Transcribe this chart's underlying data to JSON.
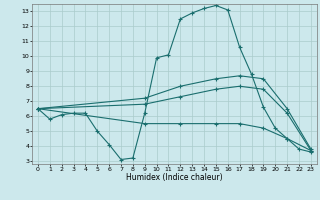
{
  "xlabel": "Humidex (Indice chaleur)",
  "bg_color": "#cce8ec",
  "grid_color": "#aacccc",
  "line_color": "#1a6e6e",
  "xlim": [
    -0.5,
    23.5
  ],
  "ylim": [
    2.8,
    13.5
  ],
  "xticks": [
    0,
    1,
    2,
    3,
    4,
    5,
    6,
    7,
    8,
    9,
    10,
    11,
    12,
    13,
    14,
    15,
    16,
    17,
    18,
    19,
    20,
    21,
    22,
    23
  ],
  "yticks": [
    3,
    4,
    5,
    6,
    7,
    8,
    9,
    10,
    11,
    12,
    13
  ],
  "lines": [
    {
      "x": [
        0,
        1,
        2,
        3,
        4,
        5,
        6,
        7,
        8,
        9,
        10,
        11,
        12,
        13,
        14,
        15,
        16,
        17,
        18,
        19,
        20,
        21,
        22,
        23
      ],
      "y": [
        6.5,
        5.8,
        6.1,
        6.2,
        6.2,
        5.0,
        4.1,
        3.1,
        3.2,
        6.2,
        9.9,
        10.1,
        12.5,
        12.9,
        13.2,
        13.4,
        13.1,
        10.6,
        8.8,
        6.6,
        5.2,
        4.5,
        3.8,
        3.6
      ]
    },
    {
      "x": [
        0,
        9,
        12,
        15,
        17,
        19,
        21,
        23
      ],
      "y": [
        6.5,
        7.2,
        8.0,
        8.5,
        8.7,
        8.5,
        6.5,
        3.8
      ]
    },
    {
      "x": [
        0,
        9,
        12,
        15,
        17,
        19,
        21,
        23
      ],
      "y": [
        6.5,
        6.8,
        7.3,
        7.8,
        8.0,
        7.8,
        6.2,
        3.7
      ]
    },
    {
      "x": [
        0,
        9,
        12,
        15,
        17,
        19,
        21,
        23
      ],
      "y": [
        6.5,
        5.5,
        5.5,
        5.5,
        5.5,
        5.2,
        4.5,
        3.7
      ]
    }
  ]
}
